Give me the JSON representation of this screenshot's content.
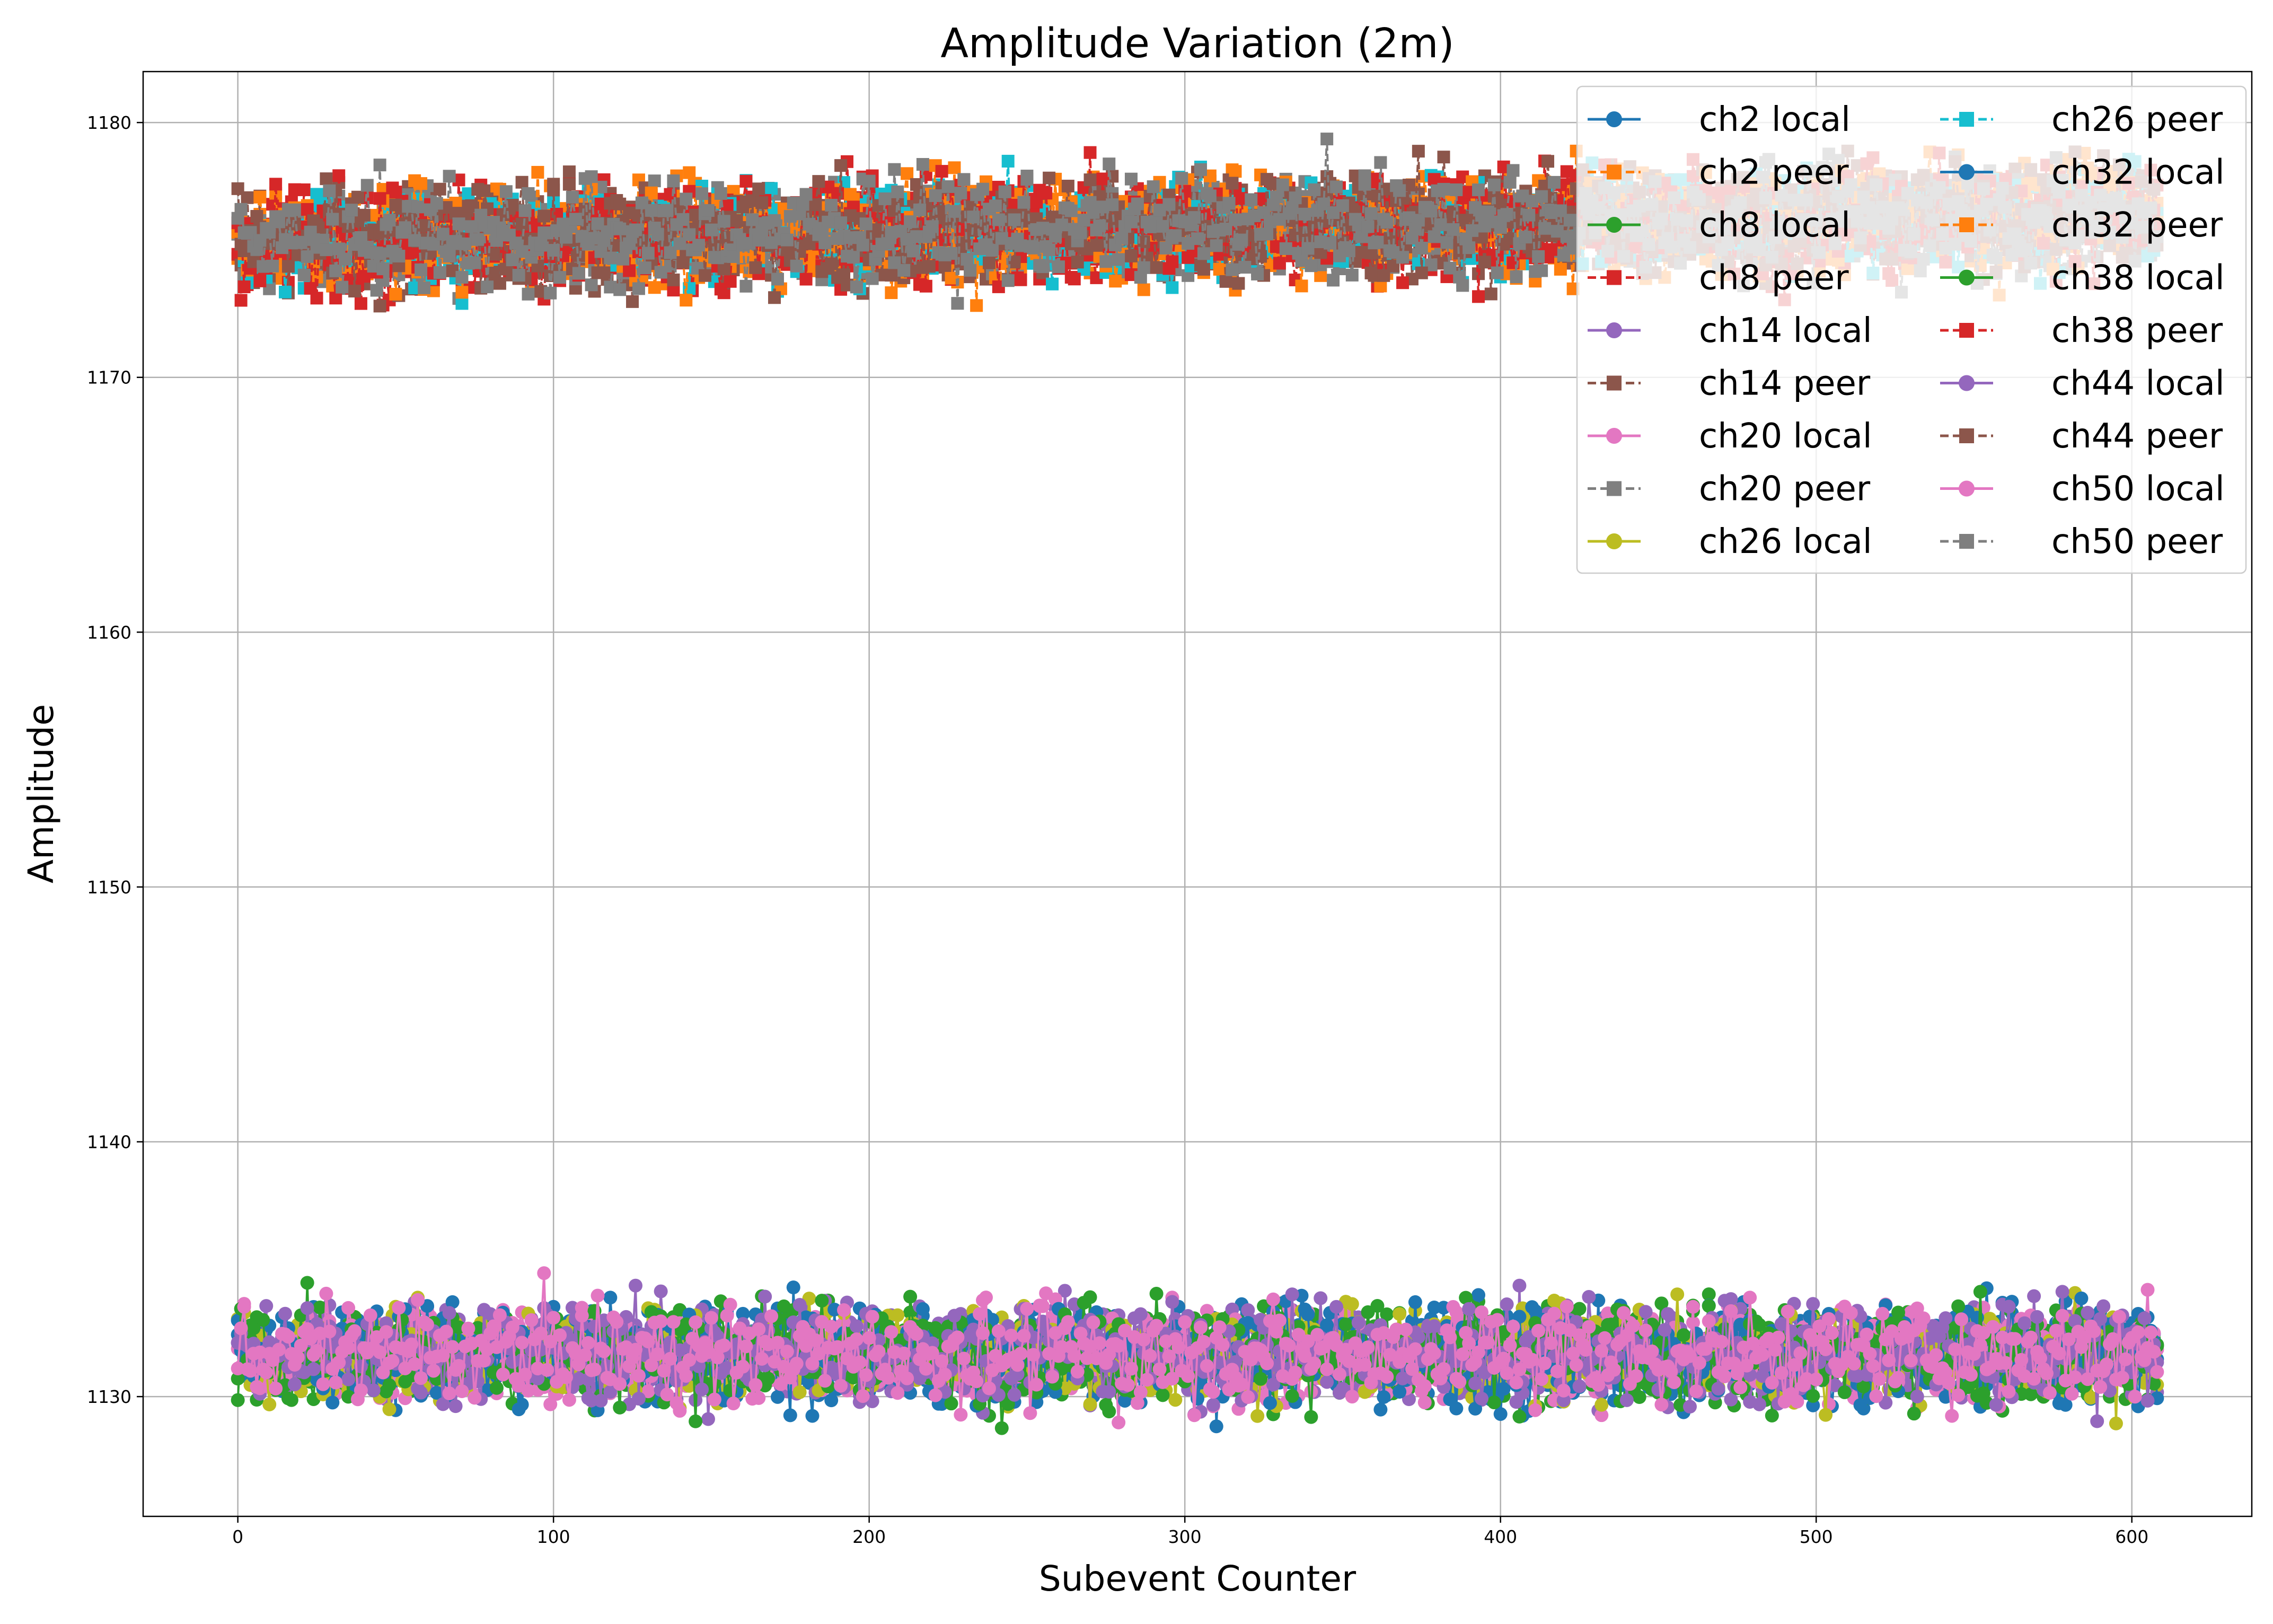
{
  "chart_data": {
    "type": "line",
    "title": "Amplitude Variation (2m)",
    "xlabel": "Subevent Counter",
    "ylabel": "Amplitude",
    "xlim": [
      -30,
      638
    ],
    "ylim": [
      1125.3,
      1182
    ],
    "xticks": [
      "0",
      "100",
      "200",
      "300",
      "400",
      "500",
      "600"
    ],
    "yticks": [
      "1130",
      "1140",
      "1150",
      "1160",
      "1170",
      "1180"
    ],
    "grid": true,
    "legend": {
      "placement": "top-right",
      "columns": 2
    },
    "n_points": 609,
    "peer_band": {
      "mean_start": 1175.4,
      "mean_end": 1176.4,
      "spread": 1.4,
      "min": 1172.7,
      "max": 1179.4
    },
    "local_band": {
      "mean": 1131.7,
      "spread": 1.3,
      "min": 1127.9,
      "max": 1136.8
    },
    "series": [
      {
        "name": "ch2 local",
        "color": "#1f77b4",
        "marker": "circle",
        "dash": "solid"
      },
      {
        "name": "ch2 peer",
        "color": "#ff7f0e",
        "marker": "square",
        "dash": "dashed"
      },
      {
        "name": "ch8 local",
        "color": "#2ca02c",
        "marker": "circle",
        "dash": "solid"
      },
      {
        "name": "ch8 peer",
        "color": "#d62728",
        "marker": "square",
        "dash": "dashed"
      },
      {
        "name": "ch14 local",
        "color": "#9467bd",
        "marker": "circle",
        "dash": "solid"
      },
      {
        "name": "ch14 peer",
        "color": "#8c564b",
        "marker": "square",
        "dash": "dashed"
      },
      {
        "name": "ch20 local",
        "color": "#e377c2",
        "marker": "circle",
        "dash": "solid"
      },
      {
        "name": "ch20 peer",
        "color": "#7f7f7f",
        "marker": "square",
        "dash": "dashed"
      },
      {
        "name": "ch26 local",
        "color": "#bcbd22",
        "marker": "circle",
        "dash": "solid"
      },
      {
        "name": "ch26 peer",
        "color": "#17becf",
        "marker": "square",
        "dash": "dashed"
      },
      {
        "name": "ch32 local",
        "color": "#1f77b4",
        "marker": "circle",
        "dash": "solid"
      },
      {
        "name": "ch32 peer",
        "color": "#ff7f0e",
        "marker": "square",
        "dash": "dashed"
      },
      {
        "name": "ch38 local",
        "color": "#2ca02c",
        "marker": "circle",
        "dash": "solid"
      },
      {
        "name": "ch38 peer",
        "color": "#d62728",
        "marker": "square",
        "dash": "dashed"
      },
      {
        "name": "ch44 local",
        "color": "#9467bd",
        "marker": "circle",
        "dash": "solid"
      },
      {
        "name": "ch44 peer",
        "color": "#8c564b",
        "marker": "square",
        "dash": "dashed"
      },
      {
        "name": "ch50 local",
        "color": "#e377c2",
        "marker": "circle",
        "dash": "solid"
      },
      {
        "name": "ch50 peer",
        "color": "#7f7f7f",
        "marker": "square",
        "dash": "dashed"
      }
    ],
    "colors": {
      "grid": "#b0b0b0",
      "axes": "#000000",
      "legend_border": "#cccccc"
    }
  }
}
